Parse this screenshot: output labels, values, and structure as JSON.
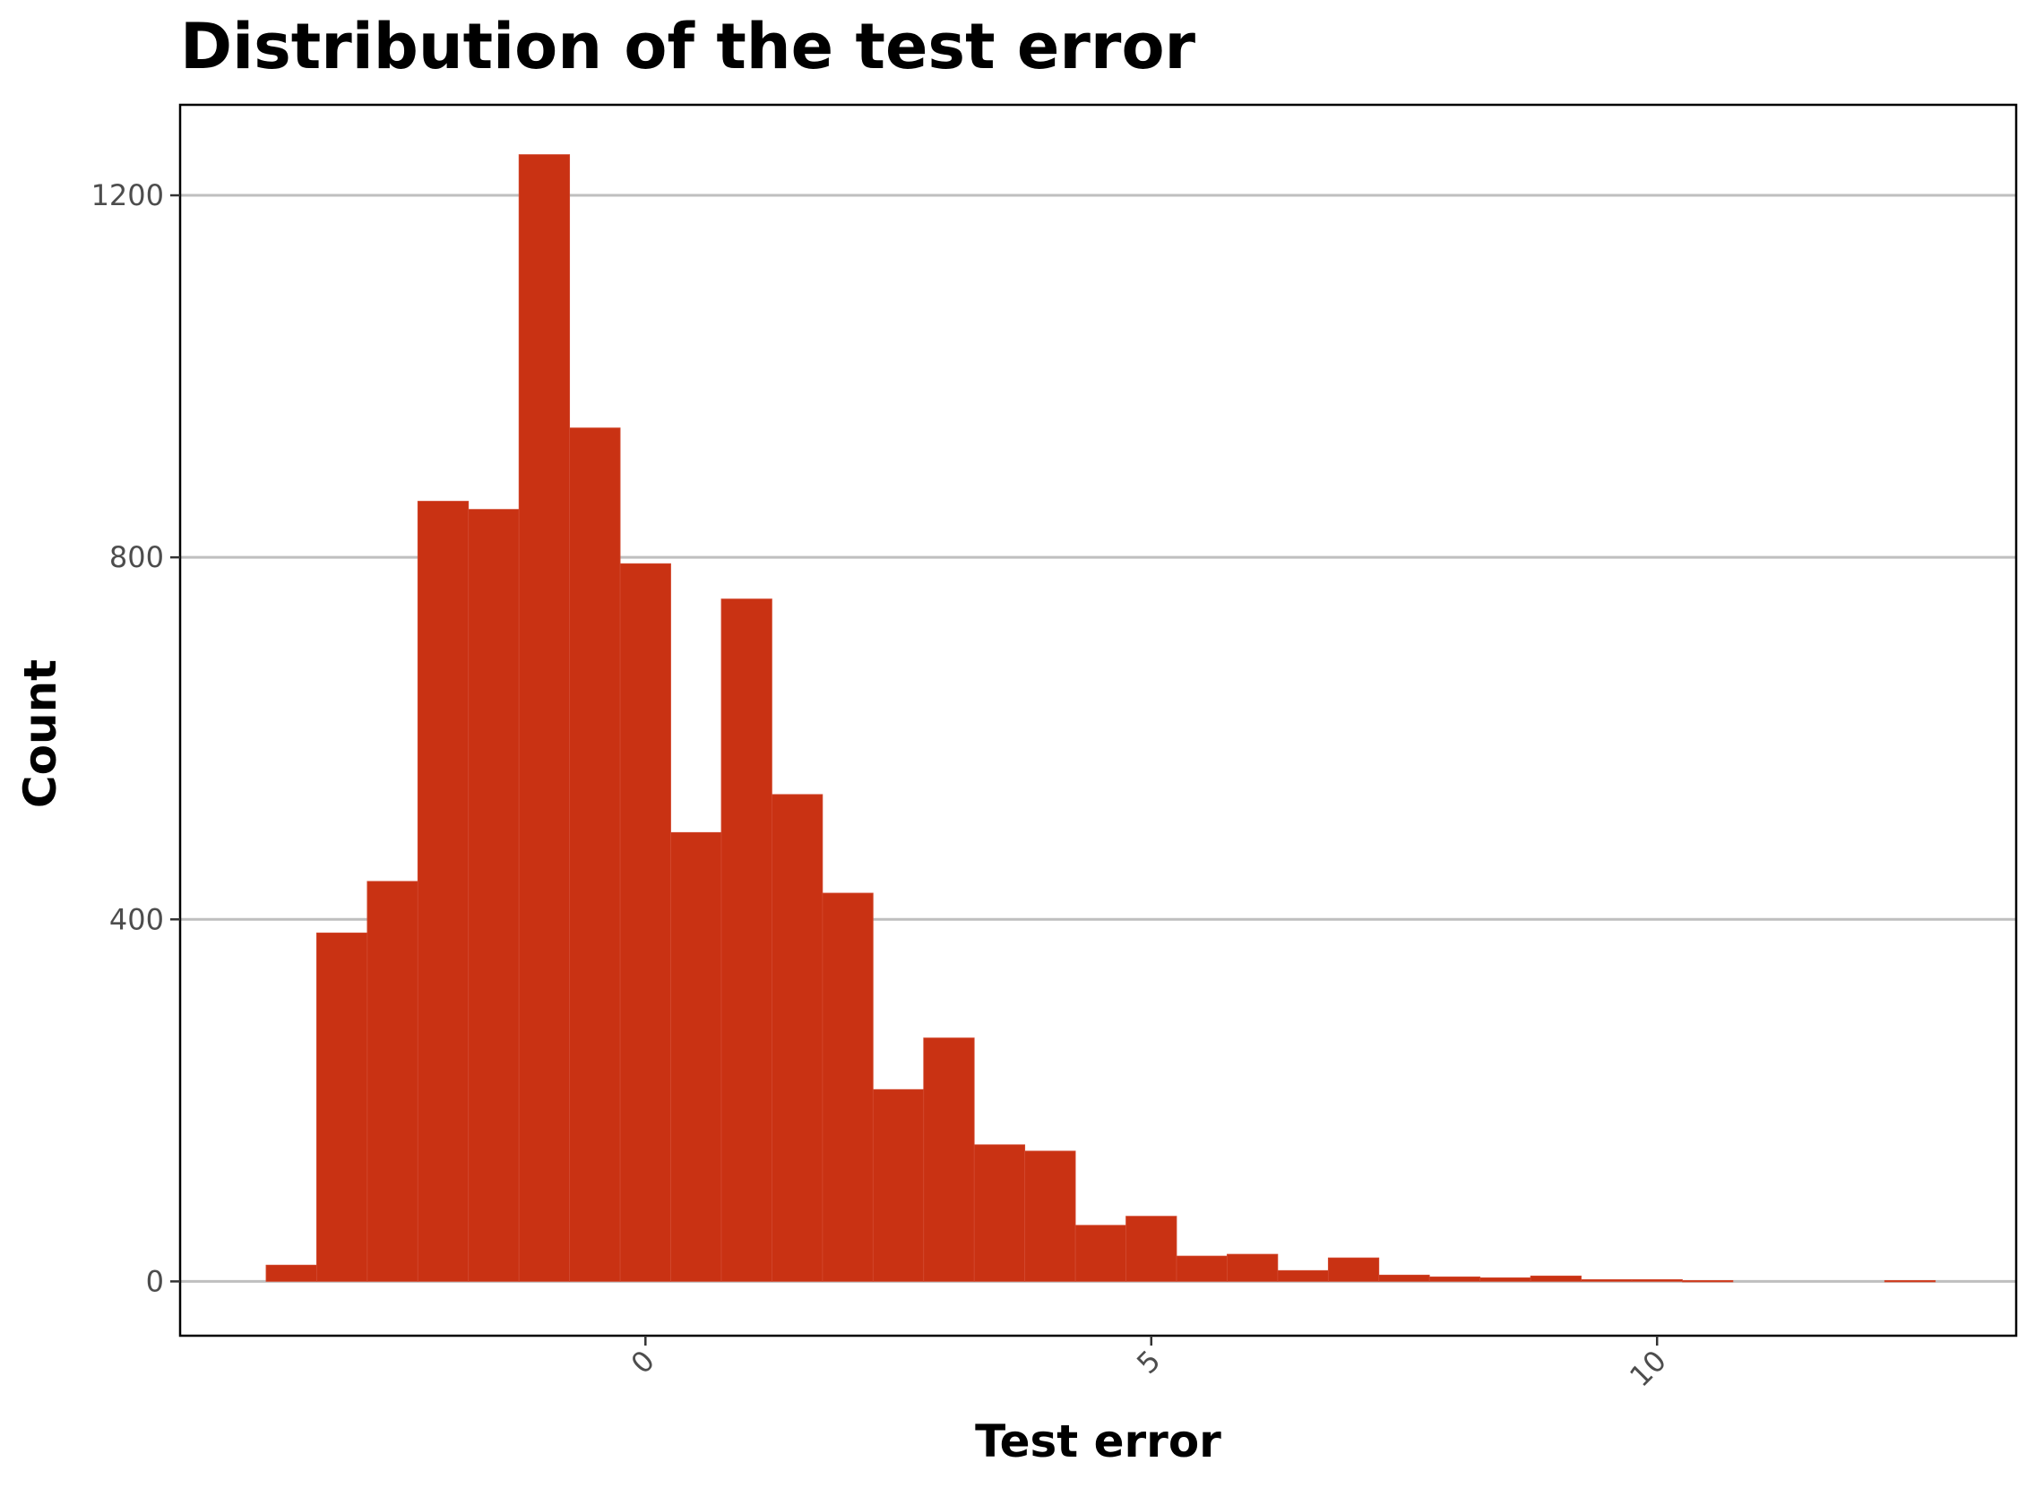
{
  "chart_data": {
    "type": "bar",
    "title": "Distribution of the test error",
    "xlabel": "Test error",
    "ylabel": "Count",
    "bar_color": "#c93213",
    "grid": "horizontal-major",
    "legend": "none",
    "x_ticks": [
      {
        "value": 0,
        "label": "0"
      },
      {
        "value": 5,
        "label": "5"
      },
      {
        "value": 10,
        "label": "10"
      }
    ],
    "y_ticks": [
      {
        "value": 0,
        "label": "0"
      },
      {
        "value": 400,
        "label": "400"
      },
      {
        "value": 800,
        "label": "800"
      },
      {
        "value": 1200,
        "label": "1200"
      }
    ],
    "xlim": [
      -4.6,
      13.55
    ],
    "ylim": [
      -60,
      1300
    ],
    "bin_width": 0.5,
    "bins": [
      {
        "x": -3.5,
        "count": 18
      },
      {
        "x": -3.0,
        "count": 385
      },
      {
        "x": -2.5,
        "count": 442
      },
      {
        "x": -2.0,
        "count": 862
      },
      {
        "x": -1.5,
        "count": 853
      },
      {
        "x": -1.0,
        "count": 1245
      },
      {
        "x": -0.5,
        "count": 943
      },
      {
        "x": 0.0,
        "count": 793
      },
      {
        "x": 0.5,
        "count": 496
      },
      {
        "x": 1.0,
        "count": 754
      },
      {
        "x": 1.5,
        "count": 538
      },
      {
        "x": 2.0,
        "count": 429
      },
      {
        "x": 2.5,
        "count": 212
      },
      {
        "x": 3.0,
        "count": 269
      },
      {
        "x": 3.5,
        "count": 151
      },
      {
        "x": 4.0,
        "count": 144
      },
      {
        "x": 4.5,
        "count": 62
      },
      {
        "x": 5.0,
        "count": 72
      },
      {
        "x": 5.5,
        "count": 28
      },
      {
        "x": 6.0,
        "count": 30
      },
      {
        "x": 6.5,
        "count": 12
      },
      {
        "x": 7.0,
        "count": 26
      },
      {
        "x": 7.5,
        "count": 7
      },
      {
        "x": 8.0,
        "count": 5
      },
      {
        "x": 8.5,
        "count": 4
      },
      {
        "x": 9.0,
        "count": 6
      },
      {
        "x": 9.5,
        "count": 2
      },
      {
        "x": 10.0,
        "count": 2
      },
      {
        "x": 10.5,
        "count": 1
      },
      {
        "x": 11.0,
        "count": 0
      },
      {
        "x": 11.5,
        "count": 0
      },
      {
        "x": 12.0,
        "count": 0
      },
      {
        "x": 12.5,
        "count": 1
      }
    ]
  }
}
